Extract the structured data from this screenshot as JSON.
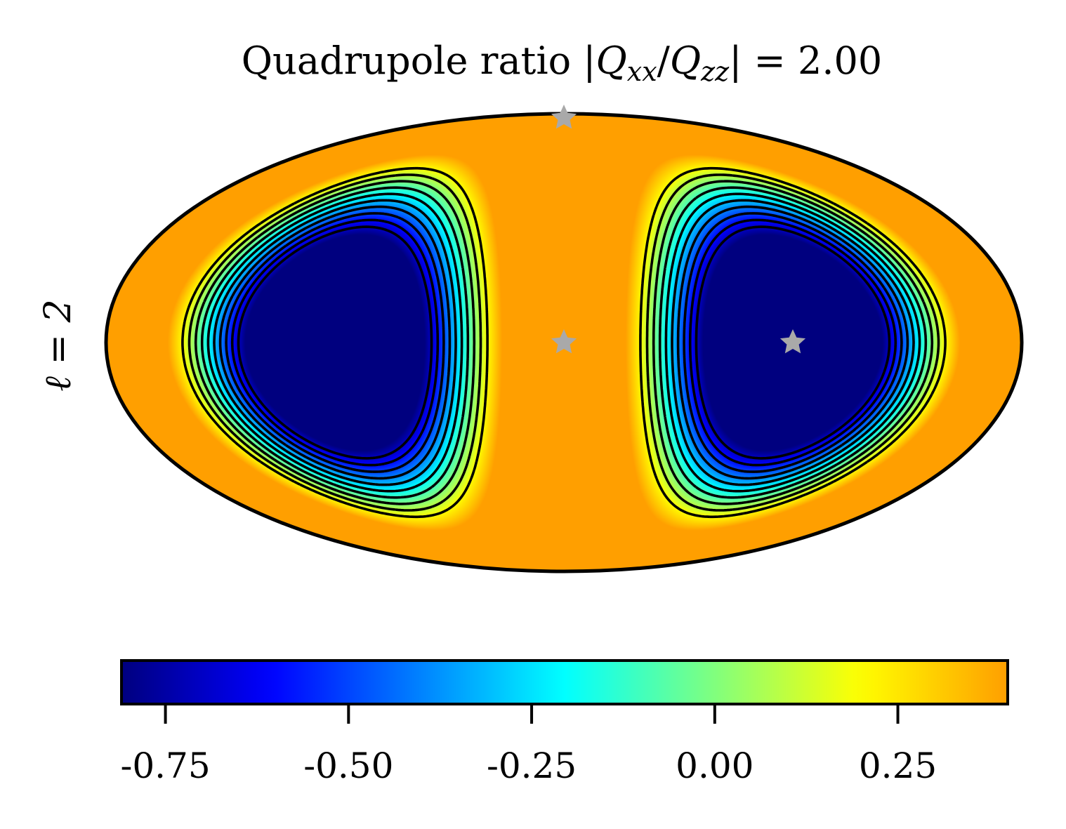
{
  "chart_data": {
    "type": "heatmap",
    "projection": "mollweide",
    "title_prefix": "Quadrupole ratio |",
    "title_q1": "Q",
    "title_sub1": "xx",
    "title_slash": "/",
    "title_q2": "Q",
    "title_sub2": "zz",
    "title_suffix": "| = 2.00",
    "row_label": "ℓ = 2",
    "field": {
      "quadrupole_ratio_Qxx_over_Qzz": 2.0,
      "value_min": -0.81,
      "value_max": 0.4,
      "contour_levels": [
        -0.7,
        -0.6,
        -0.5,
        -0.4,
        -0.3,
        -0.2,
        -0.1,
        0.0,
        0.1,
        0.2
      ],
      "negative_contour_style": "dashed",
      "positive_contour_style": "solid"
    },
    "colormap": "jet",
    "colormap_stops": [
      "#00007f",
      "#0000ff",
      "#007fff",
      "#00ffff",
      "#7fff7f",
      "#ffff00",
      "#ff9f00"
    ],
    "colorbar": {
      "orientation": "horizontal",
      "range": [
        -0.81,
        0.4
      ],
      "ticks": [
        -0.75,
        -0.5,
        -0.25,
        0.0,
        0.25
      ],
      "tick_labels": [
        "-0.75",
        "-0.50",
        "-0.25",
        "0.00",
        "0.25"
      ]
    },
    "markers": [
      {
        "name": "center",
        "lon_deg": 0,
        "lat_deg": 0,
        "symbol": "star",
        "color": "#a9a9a9"
      },
      {
        "name": "east",
        "lon_deg": 90,
        "lat_deg": 0,
        "symbol": "star",
        "color": "#a9a9a9"
      },
      {
        "name": "north-pole",
        "lon_deg": 0,
        "lat_deg": 90,
        "symbol": "star",
        "color": "#a9a9a9"
      }
    ]
  }
}
